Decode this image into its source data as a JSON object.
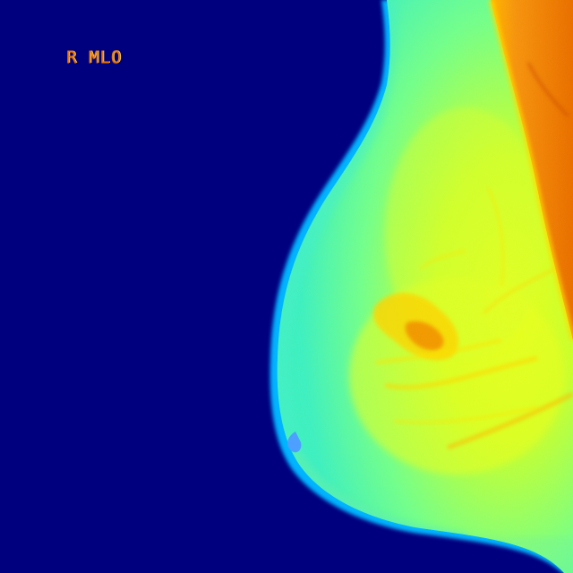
{
  "image": {
    "view_label": "R MLO",
    "colormap": "jet",
    "colors": {
      "background": "#00007f",
      "skin_edge": "#00c8ff",
      "fat_tissue": "#38f0b8",
      "glandular_tissue": "#c8ff30",
      "dense_tissue": "#ffd700",
      "muscle": "#f08a10",
      "dense_core": "#e65a00",
      "label_text": "#e07818"
    }
  }
}
